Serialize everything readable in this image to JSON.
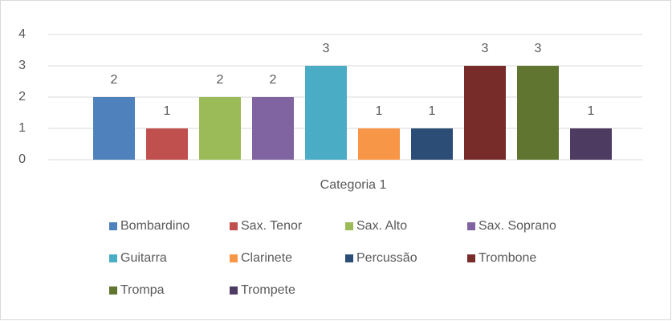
{
  "chart_data": {
    "type": "bar",
    "categories": [
      "Categoria 1"
    ],
    "series": [
      {
        "name": "Bombardino",
        "color": "#4f81bd",
        "values": [
          2
        ]
      },
      {
        "name": "Sax. Tenor",
        "color": "#c0504d",
        "values": [
          1
        ]
      },
      {
        "name": "Sax. Alto",
        "color": "#9bbb59",
        "values": [
          2
        ]
      },
      {
        "name": "Sax. Soprano",
        "color": "#8064a2",
        "values": [
          2
        ]
      },
      {
        "name": "Guitarra",
        "color": "#4bacc6",
        "values": [
          3
        ]
      },
      {
        "name": "Clarinete",
        "color": "#f79646",
        "values": [
          1
        ]
      },
      {
        "name": "Percussão",
        "color": "#2c4d75",
        "values": [
          1
        ]
      },
      {
        "name": "Trombone",
        "color": "#772c2a",
        "values": [
          3
        ]
      },
      {
        "name": "Trompa",
        "color": "#5f7530",
        "values": [
          3
        ]
      },
      {
        "name": "Trompete",
        "color": "#4d3b62",
        "values": [
          1
        ]
      }
    ],
    "ylim": [
      0,
      4
    ],
    "yticks": [
      0,
      1,
      2,
      3,
      4
    ],
    "grid": true,
    "legend": "bottom"
  }
}
